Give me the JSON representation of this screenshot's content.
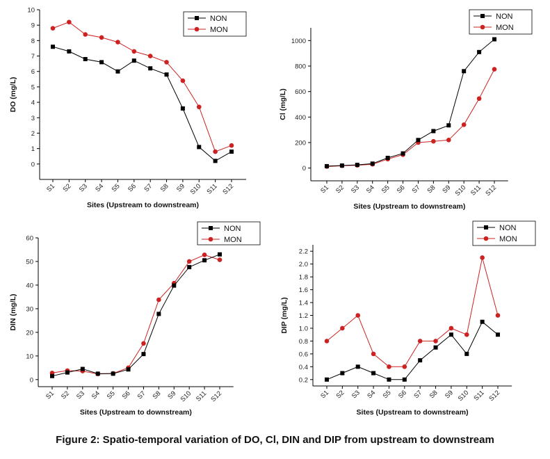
{
  "caption": "Figure 2: Spatio-temporal variation of DO, Cl, DIN and DIP from upstream to downstream",
  "colors": {
    "NON": "#000000",
    "MON": "#cc2222",
    "axis": "#000000"
  },
  "chart_data": [
    {
      "type": "line",
      "categories": [
        "S1",
        "S2",
        "S3",
        "S4",
        "S5",
        "S6",
        "S7",
        "S8",
        "S9",
        "S10",
        "S11",
        "S12"
      ],
      "series": [
        {
          "name": "NON",
          "marker": "square",
          "values": [
            7.6,
            7.3,
            6.8,
            6.6,
            6.0,
            6.7,
            6.2,
            5.8,
            3.6,
            1.1,
            0.2,
            0.8
          ]
        },
        {
          "name": "MON",
          "marker": "circle",
          "values": [
            8.8,
            9.2,
            8.4,
            8.2,
            7.9,
            7.3,
            7.0,
            6.6,
            5.4,
            3.7,
            0.8,
            1.2
          ]
        }
      ],
      "xlabel": "Sites (Upstream to downstream)",
      "ylabel": "DO (mg/L)",
      "ylim": [
        -1,
        10
      ],
      "yticks": [
        "0",
        "1",
        "2",
        "3",
        "4",
        "5",
        "6",
        "7",
        "8",
        "9",
        "10"
      ],
      "legend": "top-right",
      "grid": false
    },
    {
      "type": "line",
      "categories": [
        "S1",
        "S2",
        "S3",
        "S4",
        "S5",
        "S6",
        "S7",
        "S8",
        "S9",
        "S10",
        "S11",
        "S12"
      ],
      "series": [
        {
          "name": "NON",
          "marker": "square",
          "values": [
            15,
            20,
            25,
            35,
            80,
            115,
            220,
            290,
            335,
            760,
            910,
            1010
          ]
        },
        {
          "name": "MON",
          "marker": "circle",
          "values": [
            12,
            18,
            22,
            30,
            70,
            105,
            200,
            210,
            220,
            340,
            545,
            775
          ]
        }
      ],
      "xlabel": "Sites (Upstream to downstream)",
      "ylabel": "Cl (mg/L)",
      "ylim": [
        -100,
        1100
      ],
      "yticks": [
        "0",
        "200",
        "400",
        "600",
        "800",
        "1000"
      ],
      "legend": "top-right",
      "grid": false
    },
    {
      "type": "line",
      "categories": [
        "S1",
        "S2",
        "S3",
        "S4",
        "S5",
        "S6",
        "S7",
        "S8",
        "S9",
        "S10",
        "S11",
        "S12"
      ],
      "series": [
        {
          "name": "NON",
          "marker": "square",
          "values": [
            1.5,
            3.0,
            4.5,
            2.5,
            2.5,
            4.3,
            10.8,
            27.8,
            39.8,
            47.6,
            50.5,
            53.0
          ]
        },
        {
          "name": "MON",
          "marker": "circle",
          "values": [
            2.8,
            3.8,
            3.6,
            2.4,
            2.6,
            5.0,
            15.3,
            33.8,
            40.8,
            50.0,
            52.8,
            50.7
          ]
        }
      ],
      "xlabel": "Sites (Upstream to downstream)",
      "ylabel": "DIN (mg/L)",
      "ylim": [
        -3,
        60
      ],
      "yticks": [
        "0",
        "10",
        "20",
        "30",
        "40",
        "50",
        "60"
      ],
      "legend": "top-right",
      "grid": false
    },
    {
      "type": "line",
      "categories": [
        "S1",
        "S2",
        "S3",
        "S4",
        "S5",
        "S6",
        "S7",
        "S8",
        "S9",
        "S10",
        "S11",
        "S12"
      ],
      "series": [
        {
          "name": "NON",
          "marker": "square",
          "values": [
            0.2,
            0.3,
            0.4,
            0.3,
            0.2,
            0.2,
            0.5,
            0.7,
            0.9,
            0.6,
            1.1,
            0.9
          ]
        },
        {
          "name": "MON",
          "marker": "circle",
          "values": [
            0.8,
            1.0,
            1.2,
            0.6,
            0.4,
            0.4,
            0.8,
            0.8,
            1.0,
            0.9,
            2.1,
            1.2
          ]
        }
      ],
      "xlabel": "Sites (Upstream to downstream)",
      "ylabel": "DIP (mg/L)",
      "ylim": [
        0.1,
        2.3
      ],
      "yticks": [
        "0.2",
        "0.4",
        "0.6",
        "0.8",
        "1.0",
        "1.2",
        "1.4",
        "1.6",
        "1.8",
        "2.0",
        "2.2"
      ],
      "legend": "top-left",
      "grid": false
    }
  ]
}
